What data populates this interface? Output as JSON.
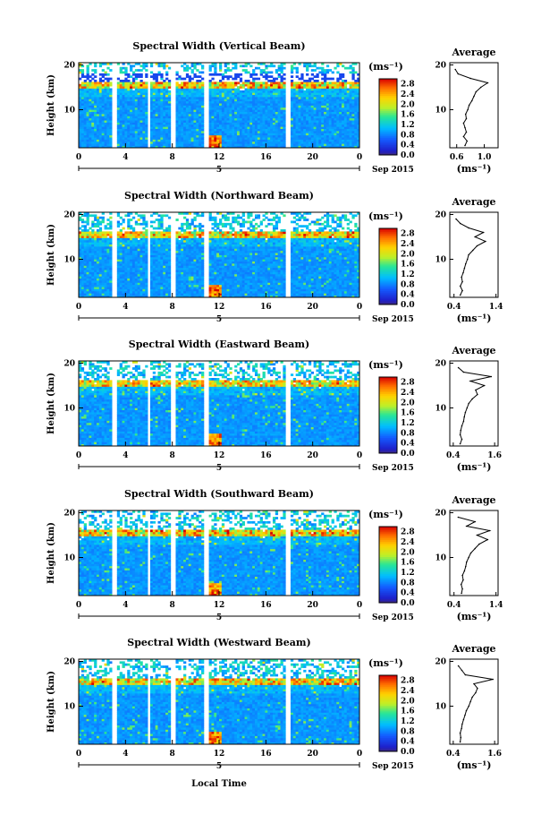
{
  "figure": {
    "x_axis_label": "Local Time",
    "date_day": "5",
    "date_month": "Sep 2015",
    "profile_title": "Average",
    "unit": "(ms⁻¹)",
    "y_axis_label": "Height (km)"
  },
  "chart_data": [
    {
      "type": "heatmap",
      "title": "Spectral Width (Vertical Beam)",
      "xlabel": "Local Time",
      "ylabel": "Height (km)",
      "x_ticks": [
        "0",
        "4",
        "8",
        "12",
        "16",
        "20",
        "0"
      ],
      "y_ticks": [
        "20",
        "10"
      ],
      "xlim": [
        0,
        24
      ],
      "ylim": [
        1.5,
        20.5
      ],
      "colorbar": {
        "unit": "(ms⁻¹)",
        "ticks": [
          "2.8",
          "2.4",
          "2.0",
          "1.6",
          "1.2",
          "0.8",
          "0.4",
          "0.0"
        ],
        "range": [
          0.0,
          3.0
        ]
      },
      "data_gaps_hours": [
        [
          2.9,
          3.3
        ],
        [
          5.8,
          6.1
        ],
        [
          7.8,
          8.2
        ],
        [
          10.8,
          11.2
        ],
        [
          17.7,
          18.0
        ]
      ],
      "profile": {
        "title": "Average",
        "xlabel": "(ms⁻¹)",
        "x_ticks": [
          "0.6",
          "1.0"
        ],
        "xlim": [
          0.5,
          1.2
        ],
        "y_ticks": [
          "20",
          "10"
        ],
        "heights_km": [
          2,
          3,
          4,
          5,
          6,
          7,
          8,
          9,
          10,
          11,
          12,
          13,
          14,
          15,
          16,
          17,
          18,
          19
        ],
        "values": [
          0.72,
          0.75,
          0.7,
          0.74,
          0.72,
          0.7,
          0.74,
          0.73,
          0.76,
          0.78,
          0.82,
          0.85,
          0.88,
          0.95,
          1.05,
          0.8,
          0.62,
          0.58
        ]
      }
    },
    {
      "type": "heatmap",
      "title": "Spectral Width (Northward Beam)",
      "xlabel": "Local Time",
      "ylabel": "Height (km)",
      "x_ticks": [
        "0",
        "4",
        "8",
        "12",
        "16",
        "20",
        "0"
      ],
      "y_ticks": [
        "20",
        "10"
      ],
      "xlim": [
        0,
        24
      ],
      "ylim": [
        1.5,
        20.5
      ],
      "colorbar": {
        "unit": "(ms⁻¹)",
        "ticks": [
          "2.8",
          "2.4",
          "2.0",
          "1.6",
          "1.2",
          "0.8",
          "0.4",
          "0.0"
        ],
        "range": [
          0.0,
          3.0
        ]
      },
      "data_gaps_hours": [
        [
          2.9,
          3.3
        ],
        [
          5.8,
          6.1
        ],
        [
          7.8,
          8.2
        ],
        [
          10.8,
          11.2
        ],
        [
          17.7,
          18.0
        ]
      ],
      "profile": {
        "title": "Average",
        "xlabel": "(ms⁻¹)",
        "x_ticks": [
          "0.4",
          "1.4"
        ],
        "xlim": [
          0.3,
          1.45
        ],
        "y_ticks": [
          "20",
          "10"
        ],
        "heights_km": [
          2,
          3,
          4,
          5,
          6,
          7,
          8,
          9,
          10,
          11,
          12,
          13,
          14,
          15,
          16,
          17,
          18,
          19
        ],
        "values": [
          0.55,
          0.6,
          0.55,
          0.6,
          0.58,
          0.62,
          0.65,
          0.68,
          0.72,
          0.75,
          0.85,
          0.95,
          1.15,
          0.9,
          1.1,
          0.75,
          0.55,
          0.45
        ]
      }
    },
    {
      "type": "heatmap",
      "title": "Spectral Width (Eastward Beam)",
      "xlabel": "Local Time",
      "ylabel": "Height (km)",
      "x_ticks": [
        "0",
        "4",
        "8",
        "12",
        "16",
        "20",
        "0"
      ],
      "y_ticks": [
        "20",
        "10"
      ],
      "xlim": [
        0,
        24
      ],
      "ylim": [
        1.5,
        20.5
      ],
      "colorbar": {
        "unit": "(ms⁻¹)",
        "ticks": [
          "2.8",
          "2.4",
          "2.0",
          "1.6",
          "1.2",
          "0.8",
          "0.4",
          "0.0"
        ],
        "range": [
          0.0,
          3.0
        ]
      },
      "data_gaps_hours": [
        [
          2.9,
          3.3
        ],
        [
          5.8,
          6.1
        ],
        [
          7.8,
          8.2
        ],
        [
          10.8,
          11.2
        ],
        [
          17.7,
          18.0
        ]
      ],
      "profile": {
        "title": "Average",
        "xlabel": "(ms⁻¹)",
        "x_ticks": [
          "0.4",
          "1.6"
        ],
        "xlim": [
          0.3,
          1.7
        ],
        "y_ticks": [
          "20",
          "10"
        ],
        "heights_km": [
          2,
          3,
          4,
          5,
          6,
          7,
          8,
          9,
          10,
          11,
          12,
          13,
          14,
          15,
          16,
          17,
          18,
          19
        ],
        "values": [
          0.6,
          0.65,
          0.6,
          0.62,
          0.65,
          0.7,
          0.72,
          0.75,
          0.8,
          0.85,
          0.95,
          1.1,
          1.05,
          1.3,
          0.9,
          1.5,
          0.7,
          0.55
        ]
      }
    },
    {
      "type": "heatmap",
      "title": "Spectral Width (Southward Beam)",
      "xlabel": "Local Time",
      "ylabel": "Height (km)",
      "x_ticks": [
        "0",
        "4",
        "8",
        "12",
        "16",
        "20",
        "0"
      ],
      "y_ticks": [
        "20",
        "10"
      ],
      "xlim": [
        0,
        24
      ],
      "ylim": [
        1.5,
        20.5
      ],
      "colorbar": {
        "unit": "(ms⁻¹)",
        "ticks": [
          "2.8",
          "2.4",
          "2.0",
          "1.6",
          "1.2",
          "0.8",
          "0.4",
          "0.0"
        ],
        "range": [
          0.0,
          3.0
        ]
      },
      "data_gaps_hours": [
        [
          2.9,
          3.3
        ],
        [
          5.8,
          6.1
        ],
        [
          7.8,
          8.2
        ],
        [
          10.8,
          11.2
        ],
        [
          17.7,
          18.0
        ]
      ],
      "profile": {
        "title": "Average",
        "xlabel": "(ms⁻¹)",
        "x_ticks": [
          "0.4",
          "1.4"
        ],
        "xlim": [
          0.3,
          1.45
        ],
        "y_ticks": [
          "20",
          "10"
        ],
        "heights_km": [
          2,
          3,
          4,
          5,
          6,
          7,
          8,
          9,
          10,
          11,
          12,
          13,
          14,
          15,
          16,
          17,
          18,
          19
        ],
        "values": [
          0.58,
          0.6,
          0.57,
          0.62,
          0.6,
          0.65,
          0.68,
          0.7,
          0.75,
          0.8,
          0.9,
          1.0,
          1.2,
          0.95,
          1.25,
          0.7,
          0.9,
          0.5
        ]
      }
    },
    {
      "type": "heatmap",
      "title": "Spectral Width (Westward Beam)",
      "xlabel": "Local Time",
      "ylabel": "Height (km)",
      "x_ticks": [
        "0",
        "4",
        "8",
        "12",
        "16",
        "20",
        "0"
      ],
      "y_ticks": [
        "20",
        "10"
      ],
      "xlim": [
        0,
        24
      ],
      "ylim": [
        1.5,
        20.5
      ],
      "colorbar": {
        "unit": "(ms⁻¹)",
        "ticks": [
          "2.8",
          "2.4",
          "2.0",
          "1.6",
          "1.2",
          "0.8",
          "0.4",
          "0.0"
        ],
        "range": [
          0.0,
          3.0
        ]
      },
      "data_gaps_hours": [
        [
          2.9,
          3.3
        ],
        [
          5.8,
          6.1
        ],
        [
          7.8,
          8.2
        ],
        [
          10.8,
          11.2
        ],
        [
          17.7,
          18.0
        ]
      ],
      "profile": {
        "title": "Average",
        "xlabel": "(ms⁻¹)",
        "x_ticks": [
          "0.4",
          "1.6"
        ],
        "xlim": [
          0.3,
          1.7
        ],
        "y_ticks": [
          "20",
          "10"
        ],
        "heights_km": [
          2,
          3,
          4,
          5,
          6,
          7,
          8,
          9,
          10,
          11,
          12,
          13,
          14,
          15,
          16,
          17,
          18,
          19
        ],
        "values": [
          0.6,
          0.62,
          0.6,
          0.64,
          0.66,
          0.7,
          0.74,
          0.78,
          0.85,
          0.9,
          0.95,
          1.05,
          1.1,
          1.0,
          1.55,
          0.75,
          0.65,
          0.55
        ]
      }
    }
  ]
}
